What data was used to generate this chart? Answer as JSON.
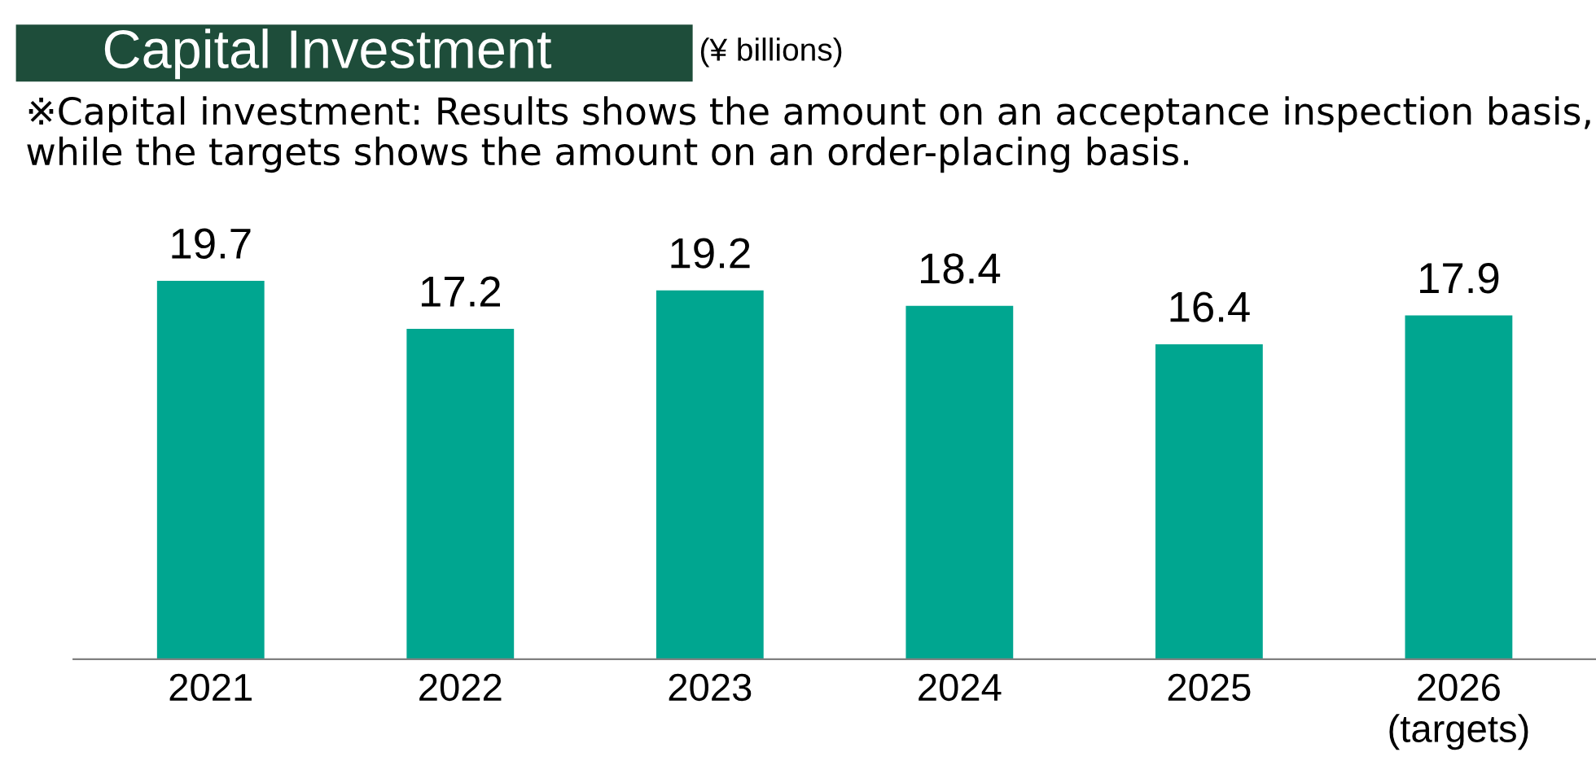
{
  "chart_data": {
    "type": "bar",
    "title": "Capital Investment",
    "subtitle": "(¥ billions)",
    "annotations": [
      "※Capital investment: Results shows the amount on an acceptance inspection basis, while the targets shows the amount on an order-placing basis."
    ],
    "categories": [
      "2021",
      "2022",
      "2023",
      "2024",
      "2025",
      "2026\n(targets)"
    ],
    "values": [
      19.7,
      17.2,
      19.2,
      18.4,
      16.4,
      17.9
    ],
    "color": "#00a690",
    "data_labels": true,
    "grid": false,
    "legend": false,
    "tick_labels": "x"
  }
}
